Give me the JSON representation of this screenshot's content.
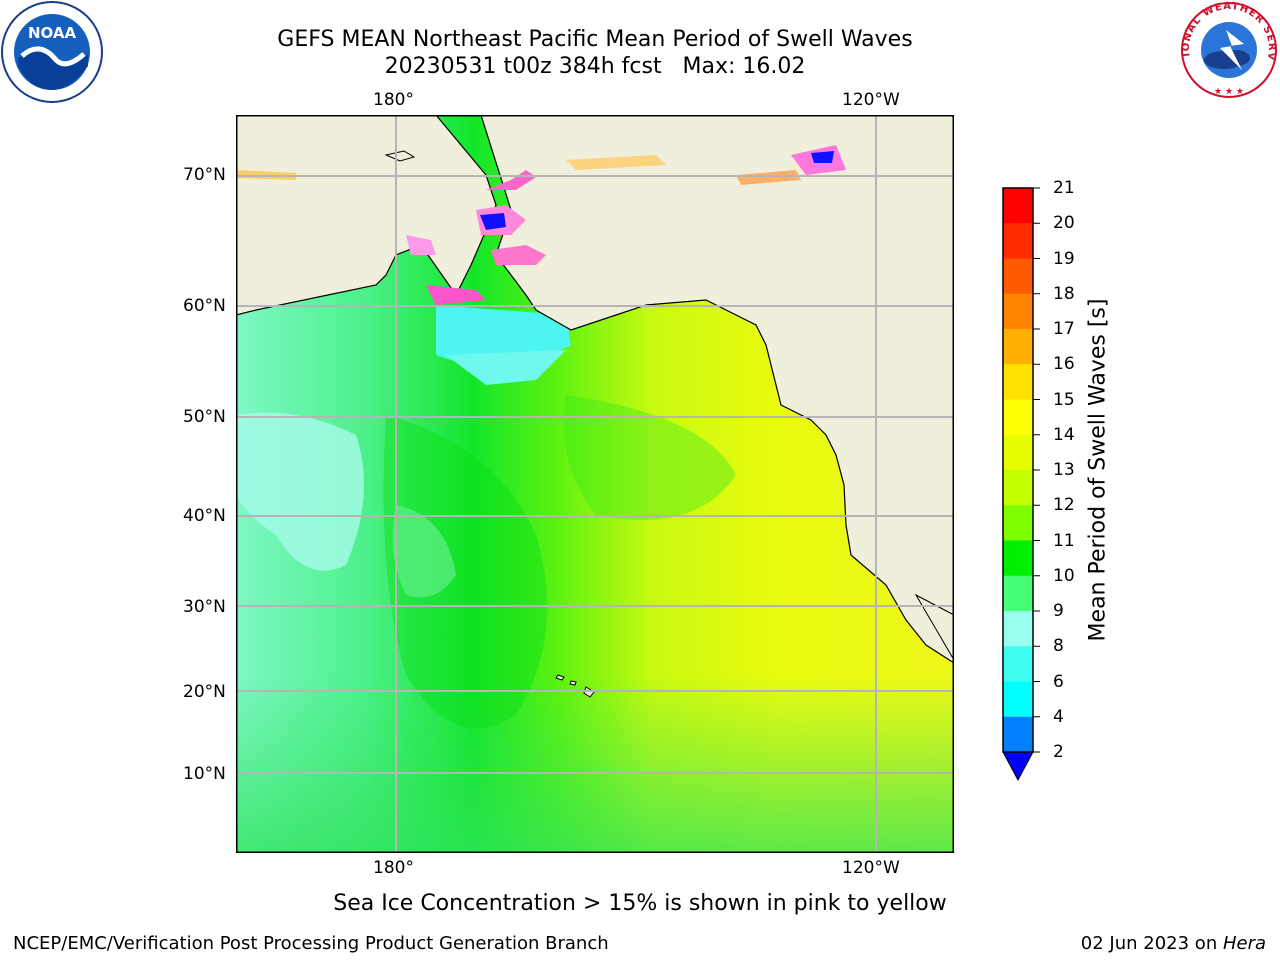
{
  "title": {
    "line1": "GEFS MEAN Northeast Pacific Mean Period of Swell Waves",
    "line2": "20230531 t00z 384h fcst   Max: 16.02"
  },
  "map": {
    "lon_labels_top": [
      "180°",
      "120°W"
    ],
    "lon_labels_bottom": [
      "180°",
      "120°W"
    ],
    "lat_labels": [
      "70°N",
      "60°N",
      "50°N",
      "40°N",
      "30°N",
      "20°N",
      "10°N"
    ],
    "land_color": "#efefdb",
    "grid_color": "#b5b5b5"
  },
  "colorbar": {
    "title": "Mean Period of Swell Waves [s]",
    "labels": [
      "21",
      "20",
      "19",
      "18",
      "17",
      "16",
      "15",
      "14",
      "13",
      "12",
      "11",
      "10",
      "9",
      "8",
      "6",
      "4",
      "2"
    ],
    "colors": [
      "#ff0000",
      "#ff2d00",
      "#ff5a00",
      "#ff8500",
      "#ffb000",
      "#ffe100",
      "#ffff00",
      "#e5ff00",
      "#c5ff00",
      "#7dff00",
      "#00ee00",
      "#45ff77",
      "#99ffee",
      "#3ffff0",
      "#00ffff",
      "#007fff"
    ],
    "extend_color": "#0000ff"
  },
  "subnote": "Sea Ice Concentration > 15% is shown in pink to yellow",
  "footer": {
    "left": "NCEP/EMC/Verification Post Processing Product Generation Branch",
    "right_date": "02 Jun 2023 on ",
    "right_machine": "Hera"
  },
  "logos": {
    "noaa_text": "NOAA",
    "nws_text": "NATIONAL WEATHER SERVICE"
  }
}
